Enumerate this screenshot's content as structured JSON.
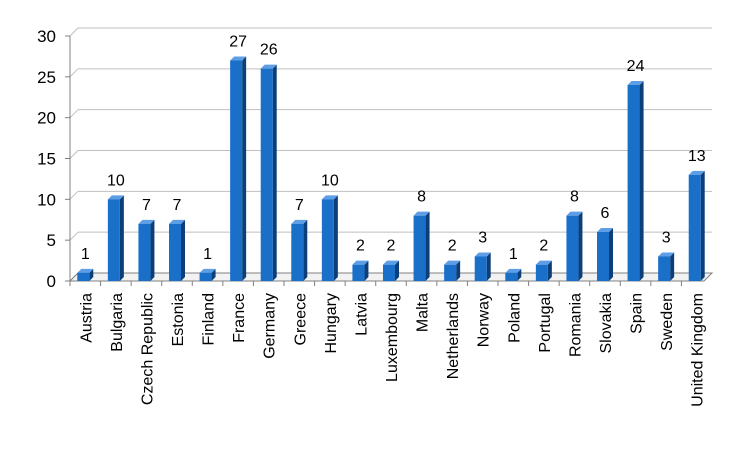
{
  "chart_data": {
    "type": "bar",
    "title": "",
    "xlabel": "",
    "ylabel": "",
    "ylim": [
      0,
      30
    ],
    "yticks": [
      0,
      5,
      10,
      15,
      20,
      25,
      30
    ],
    "grid": true,
    "legend": "none",
    "style": "3d-column",
    "bar_color": "#1a6fc9",
    "bar_side_color": "#0c3f7a",
    "bar_top_color": "#5d9ee6",
    "grid_color": "#bfbfbf",
    "categories": [
      "Austria",
      "Bulgaria",
      "Czech Republic",
      "Estonia",
      "Finland",
      "France",
      "Germany",
      "Greece",
      "Hungary",
      "Latvia",
      "Luxembourg",
      "Malta",
      "Netherlands",
      "Norway",
      "Poland",
      "Portugal",
      "Romania",
      "Slovakia",
      "Spain",
      "Sweden",
      "United Kingdom"
    ],
    "values": [
      1,
      10,
      7,
      7,
      1,
      27,
      26,
      7,
      10,
      2,
      2,
      8,
      2,
      3,
      1,
      2,
      8,
      6,
      24,
      3,
      13
    ],
    "data_labels": true
  }
}
